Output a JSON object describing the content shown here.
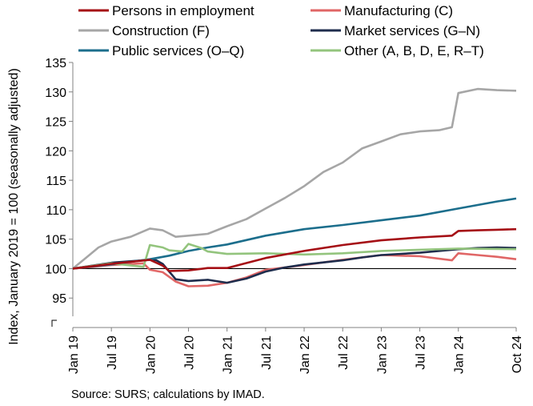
{
  "chart_data": {
    "type": "line",
    "ylabel": "Index, January 2019 = 100 (seasonally adjusted)",
    "ylim": [
      90,
      135
    ],
    "yticks": [
      95,
      100,
      105,
      110,
      115,
      120,
      125,
      130,
      135
    ],
    "axis_break": true,
    "grid": false,
    "reference_line": 100,
    "legend_position": "top",
    "x_tick_labels": [
      "Jan 19",
      "Jul 19",
      "Jan 20",
      "Jul 20",
      "Jan 21",
      "Jul 21",
      "Jan 22",
      "Jul 22",
      "Jan 23",
      "Jul 23",
      "Jan 24",
      "Oct 24"
    ],
    "x_tick_months": [
      "2019-01",
      "2019-07",
      "2020-01",
      "2020-07",
      "2021-01",
      "2021-07",
      "2022-01",
      "2022-07",
      "2023-01",
      "2023-07",
      "2024-01",
      "2024-10"
    ],
    "x_start": "2019-01",
    "x_end": "2024-10",
    "series": [
      {
        "name": "Persons in employment",
        "color": "#a50f15",
        "points": [
          [
            "2019-01",
            100
          ],
          [
            "2019-07",
            100.8
          ],
          [
            "2020-01",
            101.5
          ],
          [
            "2020-03",
            100.5
          ],
          [
            "2020-04",
            99.6
          ],
          [
            "2020-07",
            99.7
          ],
          [
            "2020-10",
            100.1
          ],
          [
            "2021-01",
            100.1
          ],
          [
            "2021-07",
            101.8
          ],
          [
            "2022-01",
            103.0
          ],
          [
            "2022-07",
            104.0
          ],
          [
            "2023-01",
            104.8
          ],
          [
            "2023-07",
            105.3
          ],
          [
            "2023-12",
            105.6
          ],
          [
            "2024-01",
            106.4
          ],
          [
            "2024-04",
            106.5
          ],
          [
            "2024-07",
            106.6
          ],
          [
            "2024-10",
            106.7
          ]
        ]
      },
      {
        "name": "Manufacturing (C)",
        "color": "#e06666",
        "points": [
          [
            "2019-01",
            100
          ],
          [
            "2019-07",
            100.6
          ],
          [
            "2019-12",
            100.9
          ],
          [
            "2020-01",
            99.8
          ],
          [
            "2020-03",
            99.4
          ],
          [
            "2020-05",
            97.8
          ],
          [
            "2020-07",
            97.0
          ],
          [
            "2020-10",
            97.1
          ],
          [
            "2021-01",
            97.6
          ],
          [
            "2021-04",
            98.5
          ],
          [
            "2021-07",
            99.8
          ],
          [
            "2021-10",
            100.2
          ],
          [
            "2022-01",
            100.6
          ],
          [
            "2022-07",
            101.5
          ],
          [
            "2023-01",
            102.3
          ],
          [
            "2023-07",
            102.1
          ],
          [
            "2023-12",
            101.4
          ],
          [
            "2024-01",
            102.6
          ],
          [
            "2024-04",
            102.3
          ],
          [
            "2024-07",
            102.0
          ],
          [
            "2024-10",
            101.6
          ]
        ]
      },
      {
        "name": "Construction (F)",
        "color": "#a6a6a6",
        "points": [
          [
            "2019-01",
            100
          ],
          [
            "2019-03",
            101.8
          ],
          [
            "2019-05",
            103.6
          ],
          [
            "2019-07",
            104.6
          ],
          [
            "2019-10",
            105.4
          ],
          [
            "2020-01",
            106.8
          ],
          [
            "2020-03",
            106.5
          ],
          [
            "2020-05",
            105.4
          ],
          [
            "2020-07",
            105.6
          ],
          [
            "2020-10",
            105.9
          ],
          [
            "2021-01",
            107.2
          ],
          [
            "2021-04",
            108.4
          ],
          [
            "2021-07",
            110.2
          ],
          [
            "2021-10",
            112.0
          ],
          [
            "2022-01",
            114.0
          ],
          [
            "2022-04",
            116.4
          ],
          [
            "2022-07",
            118.0
          ],
          [
            "2022-10",
            120.4
          ],
          [
            "2023-01",
            121.6
          ],
          [
            "2023-04",
            122.8
          ],
          [
            "2023-07",
            123.3
          ],
          [
            "2023-10",
            123.5
          ],
          [
            "2023-12",
            124.0
          ],
          [
            "2024-01",
            129.8
          ],
          [
            "2024-04",
            130.5
          ],
          [
            "2024-07",
            130.3
          ],
          [
            "2024-10",
            130.2
          ]
        ]
      },
      {
        "name": "Market services (G–N)",
        "color": "#1f2d4d",
        "points": [
          [
            "2019-01",
            100
          ],
          [
            "2019-07",
            101.0
          ],
          [
            "2020-01",
            101.5
          ],
          [
            "2020-02",
            101.4
          ],
          [
            "2020-03",
            100.8
          ],
          [
            "2020-05",
            98.2
          ],
          [
            "2020-07",
            97.9
          ],
          [
            "2020-10",
            98.1
          ],
          [
            "2021-01",
            97.6
          ],
          [
            "2021-04",
            98.3
          ],
          [
            "2021-07",
            99.5
          ],
          [
            "2021-10",
            100.2
          ],
          [
            "2022-01",
            100.7
          ],
          [
            "2022-07",
            101.4
          ],
          [
            "2022-10",
            101.9
          ],
          [
            "2023-01",
            102.3
          ],
          [
            "2023-07",
            102.7
          ],
          [
            "2024-01",
            103.3
          ],
          [
            "2024-04",
            103.5
          ],
          [
            "2024-07",
            103.6
          ],
          [
            "2024-10",
            103.5
          ]
        ]
      },
      {
        "name": "Public services (O–Q)",
        "color": "#1c6e8c",
        "points": [
          [
            "2019-01",
            100
          ],
          [
            "2019-07",
            100.7
          ],
          [
            "2020-01",
            101.6
          ],
          [
            "2020-04",
            102.2
          ],
          [
            "2020-07",
            103.0
          ],
          [
            "2020-10",
            103.6
          ],
          [
            "2021-01",
            104.1
          ],
          [
            "2021-07",
            105.6
          ],
          [
            "2022-01",
            106.7
          ],
          [
            "2022-07",
            107.4
          ],
          [
            "2023-01",
            108.2
          ],
          [
            "2023-07",
            109.0
          ],
          [
            "2024-01",
            110.2
          ],
          [
            "2024-04",
            110.8
          ],
          [
            "2024-07",
            111.4
          ],
          [
            "2024-10",
            111.9
          ]
        ]
      },
      {
        "name": "Other (A, B, D, E, R–T)",
        "color": "#93c47d",
        "points": [
          [
            "2019-01",
            100
          ],
          [
            "2019-07",
            100.9
          ],
          [
            "2019-12",
            100.3
          ],
          [
            "2020-01",
            104.0
          ],
          [
            "2020-03",
            103.6
          ],
          [
            "2020-04",
            103.1
          ],
          [
            "2020-06",
            102.9
          ],
          [
            "2020-07",
            104.2
          ],
          [
            "2020-09",
            103.5
          ],
          [
            "2020-10",
            102.9
          ],
          [
            "2021-01",
            102.5
          ],
          [
            "2021-07",
            102.6
          ],
          [
            "2022-01",
            102.4
          ],
          [
            "2022-07",
            102.6
          ],
          [
            "2023-01",
            103.0
          ],
          [
            "2023-07",
            103.2
          ],
          [
            "2024-01",
            103.4
          ],
          [
            "2024-10",
            103.3
          ]
        ]
      }
    ]
  },
  "source_note": "Source: SURS; calculations by IMAD."
}
